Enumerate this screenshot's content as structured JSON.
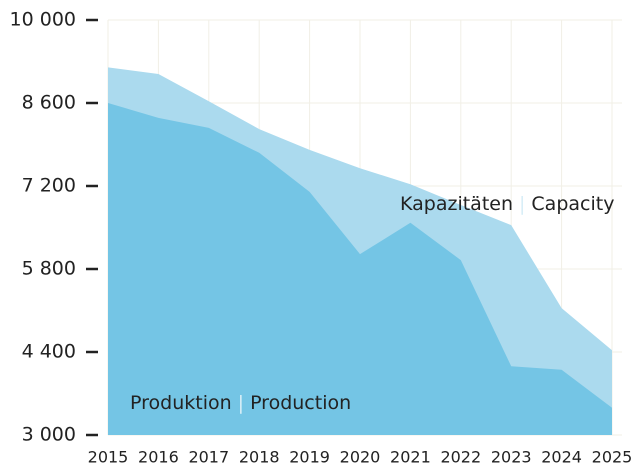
{
  "chart_data": {
    "type": "area",
    "x": [
      2015,
      2016,
      2017,
      2018,
      2019,
      2020,
      2021,
      2022,
      2023,
      2024,
      2025
    ],
    "xlim": [
      2015,
      2025
    ],
    "ylim": [
      3000,
      10000
    ],
    "yticks": [
      {
        "value": 3000,
        "label": "3 000"
      },
      {
        "value": 4400,
        "label": "4 400"
      },
      {
        "value": 5800,
        "label": "5 800"
      },
      {
        "value": 7200,
        "label": "7 200"
      },
      {
        "value": 8600,
        "label": "8 600"
      },
      {
        "value": 10000,
        "label": "10 000"
      }
    ],
    "grid": true,
    "series": [
      {
        "labels": [
          "Kapazitäten",
          "Capacity"
        ],
        "color": "#abdaee",
        "values": [
          9200,
          9090,
          8630,
          8160,
          7810,
          7500,
          7230,
          6880,
          6540,
          5140,
          4430
        ]
      },
      {
        "labels": [
          "Produktion",
          "Production"
        ],
        "color": "#74c5e5",
        "values": [
          8600,
          8350,
          8180,
          7760,
          7100,
          6050,
          6580,
          5950,
          4160,
          4100,
          3460
        ]
      }
    ]
  }
}
